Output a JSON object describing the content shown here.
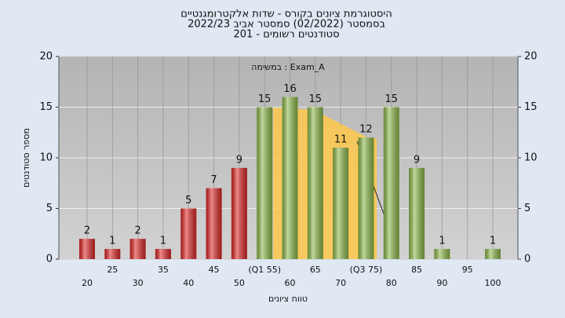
{
  "chart_data": {
    "type": "bar",
    "title": [
      "היסטוגרמת ציונים בקורס - שדות אלקטרומגנטיים",
      "בסמסטר  (02/2022)  סמסטר אביב 2022/23",
      "סטודנטים רשומים - 201"
    ],
    "annotation": "במשימה : Exam_A",
    "x_label": "טווח ציונים",
    "y_label": "מספר סטודנטים",
    "categories": [
      "20",
      "25",
      "30",
      "35",
      "40",
      "45",
      "50",
      "(Q1 55)",
      "60",
      "65",
      "70",
      "(Q3 75)",
      "80",
      "85",
      "90",
      "95",
      "100"
    ],
    "values": [
      2,
      1,
      2,
      1,
      5,
      7,
      9,
      15,
      16,
      15,
      11,
      12,
      15,
      9,
      1,
      null,
      1
    ],
    "bar_colors": [
      "#e02828",
      "#e02828",
      "#e02828",
      "#e02828",
      "#e02828",
      "#e02828",
      "#e02828",
      "#8fbb4c",
      "#8fbb4c",
      "#8fbb4c",
      "#8fbb4c",
      "#8fbb4c",
      "#8fbb4c",
      "#8fbb4c",
      "#8fbb4c",
      "#8fbb4c",
      "#8fbb4c"
    ],
    "ylim": [
      0,
      20
    ],
    "yticks": [
      0,
      5,
      10,
      15,
      20
    ],
    "grid": true
  }
}
